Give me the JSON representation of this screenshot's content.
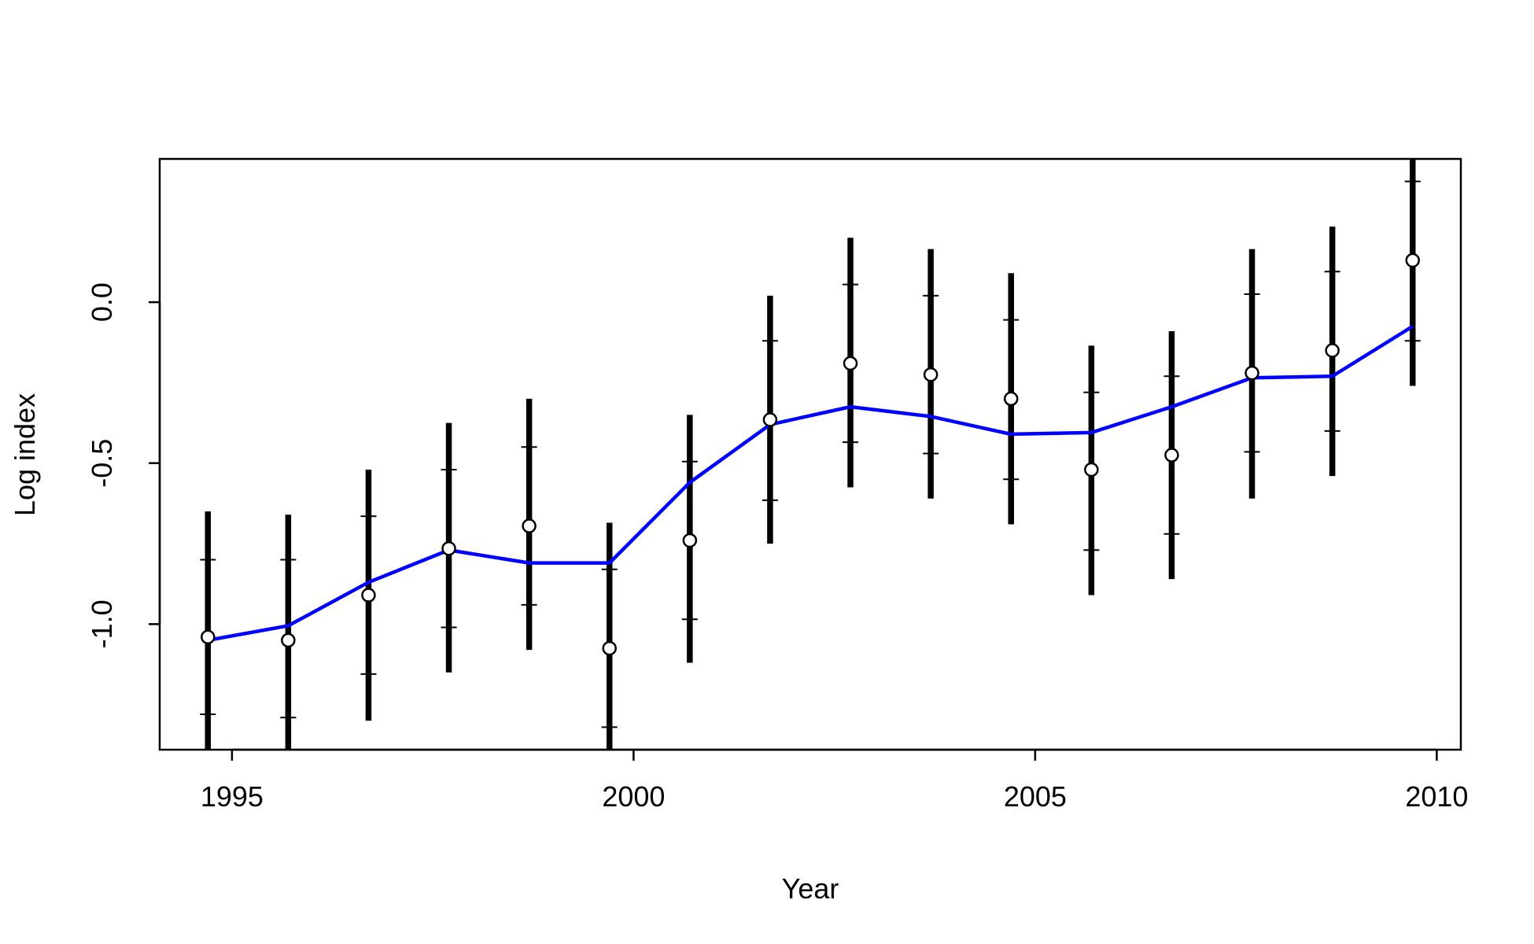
{
  "chart_data": {
    "type": "scatter",
    "title": "",
    "xlabel": "Year",
    "ylabel": "Log index",
    "xlim": [
      1994.1,
      2010.3
    ],
    "ylim": [
      -1.39,
      0.445
    ],
    "xticks": [
      1995,
      2000,
      2005,
      2010
    ],
    "xtick_labels": [
      "1995",
      "2000",
      "2005",
      "2010"
    ],
    "yticks": [
      -1.0,
      -0.5,
      0.0
    ],
    "ytick_labels": [
      "-1.0",
      "-0.5",
      "0.0"
    ],
    "grid": false,
    "legend": "none",
    "colors": {
      "fit_line": "#0000FF",
      "bars": "#000000",
      "points_fill": "#FFFFFF",
      "points_edge": "#000000"
    },
    "x": [
      1994.7,
      1995.7,
      1996.7,
      1997.7,
      1998.7,
      1999.7,
      2000.7,
      2001.7,
      2002.7,
      2003.7,
      2004.7,
      2005.7,
      2006.7,
      2007.7,
      2008.7,
      2009.7
    ],
    "series": [
      {
        "kind": "observed",
        "marker": "open-circle",
        "values": [
          -1.04,
          -1.05,
          -0.91,
          -0.765,
          -0.695,
          -1.075,
          -0.74,
          -0.365,
          -0.19,
          -0.225,
          -0.3,
          -0.52,
          -0.475,
          -0.22,
          -0.15,
          0.13
        ],
        "ci95_lower": [
          -1.55,
          -1.55,
          -1.3,
          -1.15,
          -1.08,
          -1.55,
          -1.12,
          -0.75,
          -0.575,
          -0.61,
          -0.69,
          -0.91,
          -0.86,
          -0.61,
          -0.54,
          -0.26
        ],
        "ci95_upper": [
          -0.65,
          -0.66,
          -0.52,
          -0.375,
          -0.3,
          -0.685,
          -0.35,
          0.02,
          0.2,
          0.165,
          0.09,
          -0.135,
          -0.09,
          0.165,
          0.235,
          0.47
        ],
        "se_lower": [
          -1.28,
          -1.29,
          -1.155,
          -1.01,
          -0.94,
          -1.32,
          -0.985,
          -0.615,
          -0.435,
          -0.47,
          -0.55,
          -0.77,
          -0.72,
          -0.465,
          -0.4,
          -0.12
        ],
        "se_upper": [
          -0.8,
          -0.8,
          -0.665,
          -0.52,
          -0.45,
          -0.83,
          -0.495,
          -0.12,
          0.055,
          0.02,
          -0.055,
          -0.28,
          -0.23,
          0.025,
          0.095,
          0.375
        ]
      },
      {
        "kind": "fitted",
        "line": "solid",
        "values": [
          -1.05,
          -1.005,
          -0.87,
          -0.77,
          -0.81,
          -0.81,
          -0.56,
          -0.38,
          -0.325,
          -0.355,
          -0.41,
          -0.405,
          -0.325,
          -0.235,
          -0.23,
          -0.075
        ]
      }
    ]
  }
}
